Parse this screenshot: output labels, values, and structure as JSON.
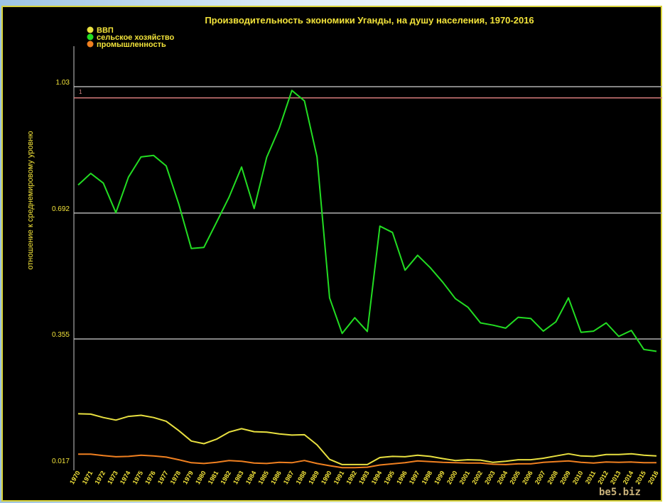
{
  "chart_data": {
    "type": "line",
    "title": "Производительность экономики Уганды, на душу населения, 1970-2016",
    "ylabel": "отношение к среднемировому уровню",
    "ylim": [
      0.017,
      1.05
    ],
    "y_ticks": [
      0.017,
      0.355,
      0.692,
      1.03
    ],
    "y_tick_labels": [
      "0.017",
      "0.355",
      "0.692",
      "1.03"
    ],
    "reference_line": {
      "value": 1.0,
      "label": "1"
    },
    "legend_position": "top-left",
    "grid": true,
    "x": [
      "1970",
      "1971",
      "1972",
      "1973",
      "1974",
      "1975",
      "1976",
      "1977",
      "1978",
      "1979",
      "1980",
      "1981",
      "1982",
      "1983",
      "1984",
      "1985",
      "1986",
      "1987",
      "1988",
      "1989",
      "1990",
      "1991",
      "1992",
      "1993",
      "1994",
      "1995",
      "1996",
      "1997",
      "1998",
      "1999",
      "2000",
      "2001",
      "2002",
      "2003",
      "2004",
      "2005",
      "2006",
      "2007",
      "2008",
      "2009",
      "2010",
      "2011",
      "2012",
      "2013",
      "2014",
      "2015",
      "2016"
    ],
    "series": [
      {
        "name": "ВВП",
        "color": "#e8e040",
        "values": [
          0.155,
          0.154,
          0.145,
          0.138,
          0.148,
          0.151,
          0.145,
          0.135,
          0.11,
          0.082,
          0.075,
          0.087,
          0.106,
          0.115,
          0.107,
          0.106,
          0.101,
          0.098,
          0.099,
          0.072,
          0.033,
          0.019,
          0.019,
          0.019,
          0.038,
          0.041,
          0.04,
          0.044,
          0.041,
          0.035,
          0.03,
          0.032,
          0.031,
          0.025,
          0.028,
          0.032,
          0.032,
          0.036,
          0.042,
          0.048,
          0.042,
          0.041,
          0.046,
          0.046,
          0.048,
          0.044,
          0.042
        ]
      },
      {
        "name": "сельское хозяйство",
        "color": "#22dd22",
        "values": [
          0.767,
          0.798,
          0.772,
          0.693,
          0.788,
          0.842,
          0.846,
          0.818,
          0.716,
          0.597,
          0.6,
          0.667,
          0.734,
          0.815,
          0.704,
          0.841,
          0.919,
          1.02,
          0.992,
          0.842,
          0.465,
          0.37,
          0.412,
          0.375,
          0.657,
          0.64,
          0.539,
          0.579,
          0.546,
          0.507,
          0.463,
          0.44,
          0.398,
          0.392,
          0.384,
          0.413,
          0.41,
          0.376,
          0.401,
          0.465,
          0.373,
          0.376,
          0.398,
          0.362,
          0.378,
          0.327,
          0.322
        ]
      },
      {
        "name": "промышленность",
        "color": "#f08020",
        "values": [
          0.047,
          0.047,
          0.043,
          0.04,
          0.041,
          0.044,
          0.042,
          0.039,
          0.032,
          0.024,
          0.022,
          0.025,
          0.03,
          0.028,
          0.023,
          0.022,
          0.025,
          0.024,
          0.03,
          0.022,
          0.016,
          0.011,
          0.011,
          0.012,
          0.018,
          0.021,
          0.024,
          0.029,
          0.027,
          0.025,
          0.024,
          0.023,
          0.023,
          0.02,
          0.019,
          0.021,
          0.021,
          0.025,
          0.027,
          0.029,
          0.025,
          0.023,
          0.026,
          0.025,
          0.026,
          0.024,
          0.024
        ]
      }
    ]
  },
  "brand": "be5.biz"
}
